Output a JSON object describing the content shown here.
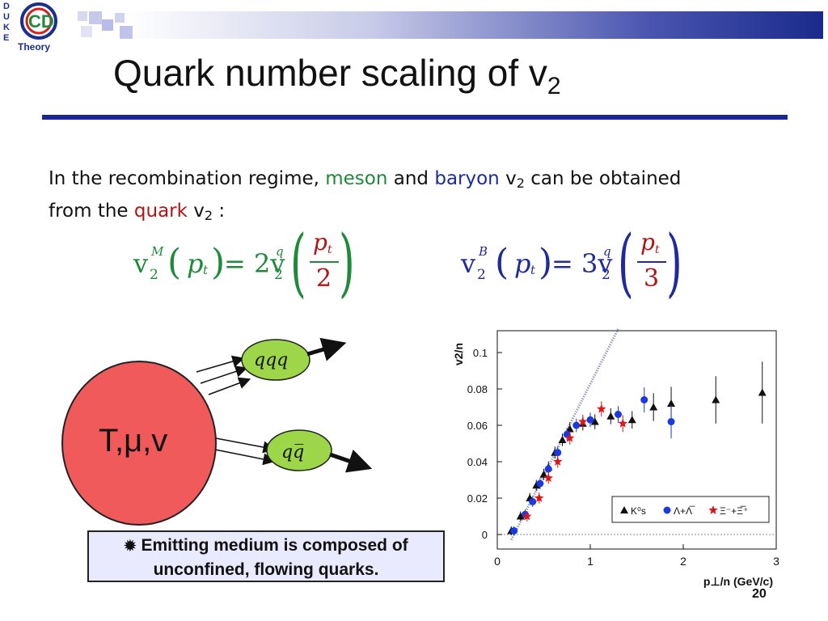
{
  "logo": {
    "letters": [
      "D",
      "U",
      "K",
      "E"
    ],
    "mark": "CD",
    "caption": "Theory"
  },
  "title": {
    "main": "Quark number scaling of v",
    "sub": "2"
  },
  "intro": {
    "l1_a": "In the recombination regime, ",
    "meson": "meson",
    "l1_b": " and ",
    "baryon": "baryon",
    "l1_c": " v",
    "l1_sub": "2",
    "l1_d": " can be obtained",
    "l2_a": "from the ",
    "quark": "quark",
    "l2_b": " v",
    "l2_sub": "2",
    "l2_c": " :"
  },
  "formula_meson": {
    "v": "v",
    "sub": "2",
    "sup": "M",
    "arg": "p",
    "arg_sub": "t",
    "eq": "= 2v",
    "q_sub": "2",
    "q_sup": "q",
    "num": "p",
    "num_sub": "t",
    "den": "2"
  },
  "formula_baryon": {
    "v": "v",
    "sub": "2",
    "sup": "B",
    "arg": "p",
    "arg_sub": "t",
    "eq": "= 3v",
    "q_sub": "2",
    "q_sup": "q",
    "num": "p",
    "num_sub": "t",
    "den": "3"
  },
  "diagram": {
    "medium_label": "T,μ,v",
    "baryon_label": "qqq",
    "meson_label": "qq̅"
  },
  "emitting": {
    "line1": "Emitting medium is composed of",
    "line2": "unconfined, flowing quarks."
  },
  "page_number": "20",
  "colors": {
    "meson": "#1e8a3a",
    "baryon": "#1f2a9c",
    "quark": "#b01515",
    "rule": "#1a2a8c",
    "medium_fill": "#f05a5a",
    "blob_fill": "#9ed64a"
  },
  "chart_data": {
    "type": "scatter",
    "ylabel": "v2/n",
    "xlabel": "p⊥/n (GeV/c)",
    "xlim": [
      0,
      3
    ],
    "ylim": [
      -0.008,
      0.112
    ],
    "xticks": [
      "0",
      "1",
      "2",
      "3"
    ],
    "yticks": [
      "0",
      "0.02",
      "0.04",
      "0.06",
      "0.08",
      "0.1"
    ],
    "legend_position": "bottom-right",
    "series": [
      {
        "name": "K⁰s",
        "marker": "triangle",
        "color": "#111111",
        "points": [
          [
            0.15,
            0.002
          ],
          [
            0.25,
            0.01
          ],
          [
            0.35,
            0.02
          ],
          [
            0.42,
            0.027
          ],
          [
            0.5,
            0.033
          ],
          [
            0.55,
            0.037
          ],
          [
            0.62,
            0.045
          ],
          [
            0.7,
            0.052
          ],
          [
            0.78,
            0.058
          ],
          [
            0.92,
            0.061
          ],
          [
            1.05,
            0.062
          ],
          [
            1.22,
            0.065
          ],
          [
            1.45,
            0.063
          ],
          [
            1.68,
            0.07
          ],
          [
            1.87,
            0.072
          ],
          [
            2.35,
            0.074
          ],
          [
            2.85,
            0.078
          ]
        ]
      },
      {
        "name": "Λ+Λ̅",
        "marker": "circle",
        "color": "#1a3ae0",
        "points": [
          [
            0.18,
            0.002
          ],
          [
            0.3,
            0.011
          ],
          [
            0.38,
            0.018
          ],
          [
            0.46,
            0.028
          ],
          [
            0.55,
            0.036
          ],
          [
            0.65,
            0.045
          ],
          [
            0.75,
            0.055
          ],
          [
            0.85,
            0.06
          ],
          [
            1.0,
            0.063
          ],
          [
            1.3,
            0.066
          ],
          [
            1.58,
            0.074
          ],
          [
            1.87,
            0.062
          ]
        ]
      },
      {
        "name": "Ξ⁻+Ξ̅⁺",
        "marker": "star",
        "color": "#e0151a",
        "points": [
          [
            0.32,
            0.01
          ],
          [
            0.45,
            0.02
          ],
          [
            0.55,
            0.031
          ],
          [
            0.65,
            0.04
          ],
          [
            0.78,
            0.053
          ],
          [
            0.92,
            0.062
          ],
          [
            1.12,
            0.069
          ],
          [
            1.35,
            0.061
          ]
        ]
      }
    ]
  }
}
